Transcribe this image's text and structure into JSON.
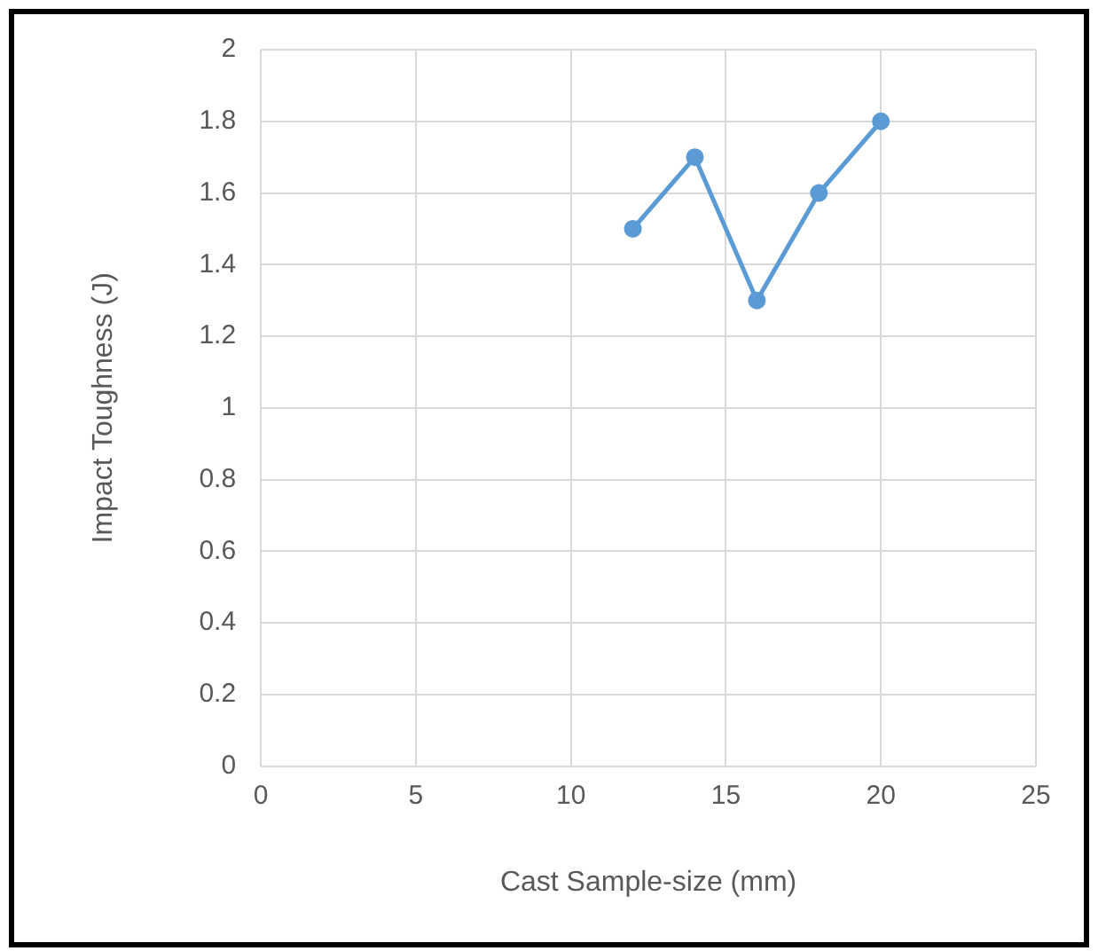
{
  "chart_data": {
    "type": "line",
    "xlabel": "Cast Sample-size (mm)",
    "ylabel": "Impact Toughness (J)",
    "x": [
      12,
      14,
      16,
      18,
      20
    ],
    "series": [
      {
        "color": "#5b9bd5",
        "values": [
          1.5,
          1.7,
          1.3,
          1.6,
          1.8
        ]
      }
    ],
    "xlim": [
      0,
      25
    ],
    "xticks": [
      0,
      5,
      10,
      15,
      20,
      25
    ],
    "ylim": [
      0,
      2
    ],
    "yticks": [
      0,
      0.2,
      0.4,
      0.6,
      0.8,
      1,
      1.2,
      1.4,
      1.6,
      1.8,
      2
    ],
    "grid": true,
    "legend": false,
    "marker": "circle",
    "line_style": "solid"
  }
}
